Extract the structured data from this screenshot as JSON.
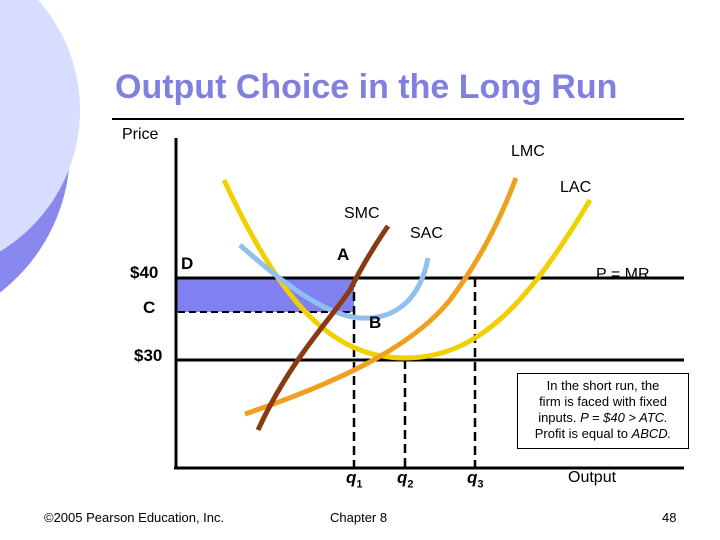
{
  "slide": {
    "title": "Output Choice in the Long Run",
    "page_number": "48",
    "footer_left": "©2005 Pearson Education, Inc.",
    "footer_center": "Chapter 8"
  },
  "colors": {
    "title": "#8080e0",
    "shaded_area": "#8080f0",
    "lmc": "#f0a020",
    "lac": "#f0d000",
    "smc": "#8a3a10",
    "sac": "#90c0f0",
    "mr_line": "#000000",
    "deco_circle_light": "#d8dcff",
    "deco_circle_dark": "#8888ee"
  },
  "diagram": {
    "y_axis_label": "Price",
    "x_axis_label": "Output",
    "price_labels": {
      "p40": "$40",
      "p30": "$30",
      "c": "C"
    },
    "point_labels": {
      "a": "A",
      "b": "B",
      "d": "D"
    },
    "curve_labels": {
      "lmc": "LMC",
      "lac": "LAC",
      "smc": "SMC",
      "sac": "SAC",
      "mr": "P = MR"
    },
    "quantity_labels": {
      "q1": "q",
      "q1_sub": "1",
      "q2": "q",
      "q2_sub": "2",
      "q3": "q",
      "q3_sub": "3"
    },
    "note": {
      "line1": "In the short run, the",
      "line2": "firm is faced with fixed",
      "line3_a": "inputs.  ",
      "line3_b": "P = $40 > ATC.",
      "line4_a": "Profit is equal to ",
      "line4_b": "ABCD."
    }
  }
}
